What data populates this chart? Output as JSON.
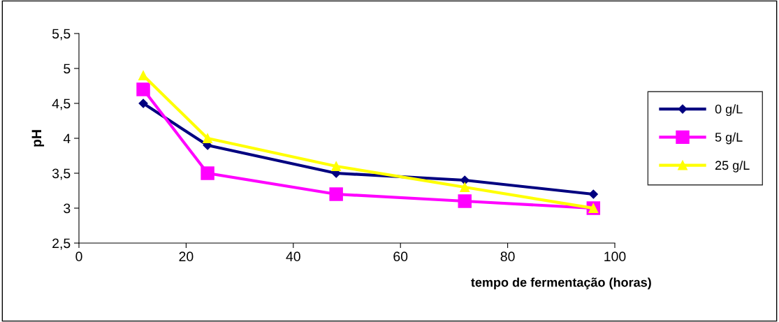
{
  "chart_data": {
    "type": "line",
    "xlabel": "tempo de fermentação (horas)",
    "ylabel": "pH",
    "x": [
      12,
      24,
      48,
      72,
      96
    ],
    "series": [
      {
        "name": "0 g/L",
        "color": "#000080",
        "marker": "diamond",
        "values": [
          4.5,
          3.9,
          3.5,
          3.4,
          3.2
        ]
      },
      {
        "name": "5 g/L",
        "color": "#ff00ff",
        "marker": "square",
        "values": [
          4.7,
          3.5,
          3.2,
          3.1,
          3.0
        ]
      },
      {
        "name": "25 g/L",
        "color": "#ffff00",
        "marker": "triangle",
        "values": [
          4.9,
          4.0,
          3.6,
          3.3,
          3.0
        ]
      }
    ],
    "xlim": [
      0,
      100
    ],
    "xticks": [
      0,
      20,
      40,
      60,
      80,
      100
    ],
    "ylim": [
      2.5,
      5.5
    ],
    "yticks": [
      {
        "value": 2.5,
        "label": "2,5"
      },
      3,
      {
        "value": 3.5,
        "label": "3,5"
      },
      4,
      {
        "value": 4.5,
        "label": "4,5"
      },
      5,
      {
        "value": 5.5,
        "label": "5,5"
      }
    ],
    "grid": false,
    "legend": "right",
    "line_style": "solid"
  }
}
